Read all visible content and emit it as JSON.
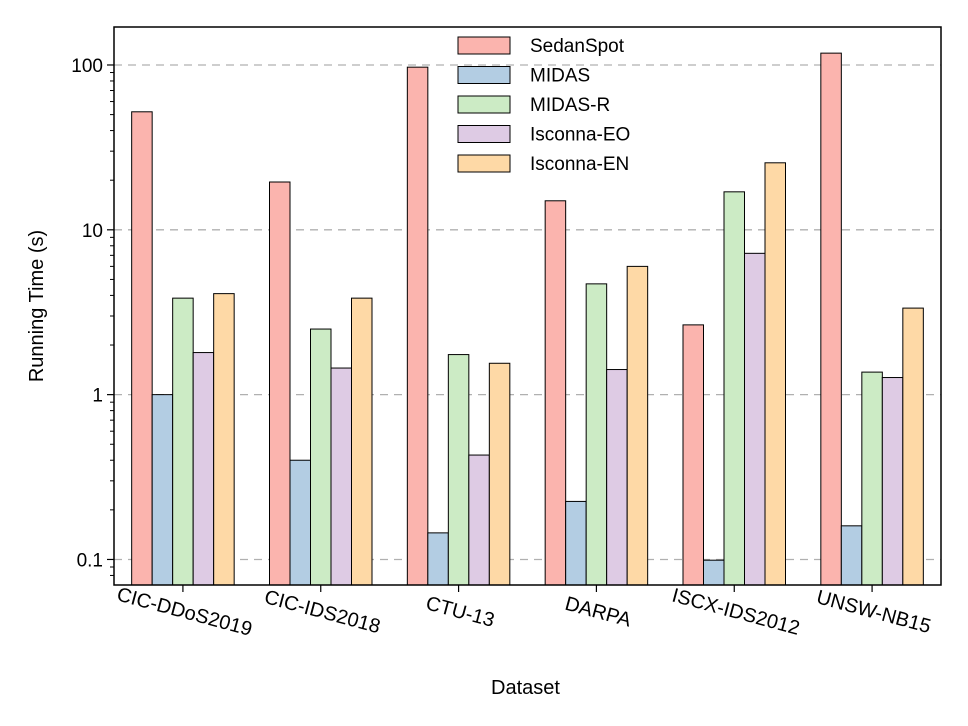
{
  "chart_data": {
    "type": "bar",
    "xlabel": "Dataset",
    "ylabel": "Running Time (s)",
    "yscale": "log",
    "ylim": [
      0.07,
      170
    ],
    "yticks": [
      0.1,
      1,
      10,
      100
    ],
    "ytick_labels": [
      "0.1",
      "1",
      "10",
      "100"
    ],
    "grid": "y-dashed",
    "legend_position": "top-center",
    "categories": [
      "CIC-DDoS2019",
      "CIC-IDS2018",
      "CTU-13",
      "DARPA",
      "ISCX-IDS2012",
      "UNSW-NB15"
    ],
    "series": [
      {
        "name": "SedanSpot",
        "color": "#fbb4ae",
        "values": [
          52,
          19.5,
          97,
          15,
          2.65,
          118
        ]
      },
      {
        "name": "MIDAS",
        "color": "#b3cde3",
        "values": [
          1.0,
          0.4,
          0.145,
          0.225,
          0.099,
          0.16
        ]
      },
      {
        "name": "MIDAS-R",
        "color": "#ccebc5",
        "values": [
          3.85,
          2.5,
          1.75,
          4.7,
          17,
          1.37
        ]
      },
      {
        "name": "Isconna-EO",
        "color": "#decbe4",
        "values": [
          1.8,
          1.45,
          0.43,
          1.42,
          7.2,
          1.27
        ]
      },
      {
        "name": "Isconna-EN",
        "color": "#fed9a6",
        "values": [
          4.1,
          3.85,
          1.55,
          6.0,
          25.5,
          3.35
        ]
      }
    ]
  }
}
